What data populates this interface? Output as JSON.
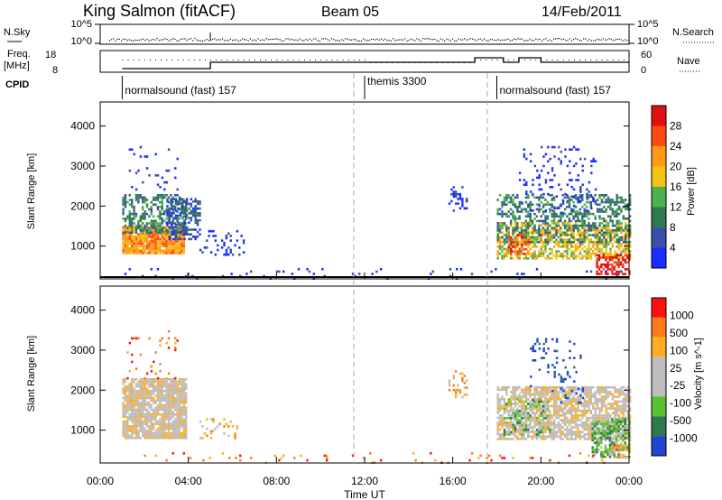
{
  "header": {
    "station": "King Salmon (fitACF)",
    "beam": "Beam 05",
    "date": "14/Feb/2011"
  },
  "noise_panel": {
    "left_label": "N.Sky",
    "right_label": "N.Search",
    "left_ticks": [
      "10^5",
      "10^0"
    ],
    "right_ticks": [
      "10^5",
      "10^0"
    ]
  },
  "freq_panel": {
    "left_label_line1": "Freq.",
    "left_label_line2": "[MHz]",
    "right_label": "Nave",
    "left_ticks": [
      "18",
      "8"
    ],
    "right_ticks": [
      "60",
      "0"
    ]
  },
  "cpid": {
    "label": "CPID",
    "segments": [
      {
        "start_hour": 1.0,
        "text": "normalsound (fast) 157"
      },
      {
        "start_hour": 12.0,
        "text": "themis 3300"
      },
      {
        "start_hour": 18.0,
        "text": "normalsound (fast) 157"
      }
    ]
  },
  "colors": {
    "power": [
      "#1a2cff",
      "#3a4fa8",
      "#2e7a4f",
      "#4caf50",
      "#f2c314",
      "#ff9a16",
      "#ff4a14",
      "#e01010"
    ],
    "velocity": [
      "#ff1010",
      "#ff7a18",
      "#ffae22",
      "#bdbdbd",
      "#bdbdbd",
      "#59c030",
      "#2e7a4f",
      "#2244d0"
    ]
  },
  "chart_data": {
    "type": "heatmap",
    "x_range_hours": [
      0,
      24
    ],
    "x_ticks": [
      "00:00",
      "04:00",
      "08:00",
      "12:00",
      "16:00",
      "20:00",
      "00:00"
    ],
    "xlabel": "Time UT",
    "grid": "vertical dashed at 12:00 and 18:00",
    "panels": [
      {
        "name": "power",
        "ylabel": "Slant Range [km]",
        "ylim": [
          180,
          4600
        ],
        "y_ticks": [
          "1000",
          "2000",
          "3000",
          "4000"
        ],
        "colorbar_label": "Power [dB]",
        "colorbar_ticks": [
          "4",
          "8",
          "12",
          "16",
          "20",
          "24",
          "28"
        ],
        "blobs": [
          {
            "t0": 1.0,
            "t1": 3.8,
            "r0": 800,
            "r1": 1500,
            "level": 5,
            "density": 0.95
          },
          {
            "t0": 1.0,
            "t1": 3.9,
            "r0": 1350,
            "r1": 2300,
            "level": 2,
            "density": 0.55
          },
          {
            "t0": 3.0,
            "t1": 4.5,
            "r0": 1200,
            "r1": 2200,
            "level": 1,
            "density": 0.6
          },
          {
            "t0": 1.3,
            "t1": 3.6,
            "r0": 2400,
            "r1": 3500,
            "level": 0,
            "density": 0.08
          },
          {
            "t0": 4.5,
            "t1": 6.5,
            "r0": 800,
            "r1": 1400,
            "level": 0,
            "density": 0.18
          },
          {
            "t0": 15.8,
            "t1": 16.6,
            "r0": 1900,
            "r1": 2500,
            "level": 0,
            "density": 0.35
          },
          {
            "t0": 18.0,
            "t1": 24.0,
            "r0": 700,
            "r1": 1600,
            "level": 4,
            "density": 0.6
          },
          {
            "t0": 18.0,
            "t1": 24.0,
            "r0": 1100,
            "r1": 2300,
            "level": 2,
            "density": 0.45
          },
          {
            "t0": 19.0,
            "t1": 22.5,
            "r0": 1800,
            "r1": 3500,
            "level": 0,
            "density": 0.12
          },
          {
            "t0": 22.5,
            "t1": 24.0,
            "r0": 300,
            "r1": 800,
            "level": 7,
            "density": 0.7
          },
          {
            "t0": 18.5,
            "t1": 19.5,
            "r0": 800,
            "r1": 1300,
            "level": 6,
            "density": 0.5
          },
          {
            "t0": 1.0,
            "t1": 24.0,
            "r0": 200,
            "r1": 450,
            "level": 0,
            "density": 0.05
          }
        ]
      },
      {
        "name": "velocity",
        "ylabel": "Slant Range [km]",
        "ylim": [
          180,
          4600
        ],
        "y_ticks": [
          "1000",
          "2000",
          "3000",
          "4000"
        ],
        "colorbar_label": "Velocity [m s^-1]",
        "colorbar_ticks": [
          "1000",
          "500",
          "100",
          "25",
          "-25",
          "-100",
          "-500",
          "-1000"
        ],
        "blobs": [
          {
            "t0": 1.0,
            "t1": 3.9,
            "r0": 800,
            "r1": 2300,
            "level": 3,
            "density": 0.9
          },
          {
            "t0": 1.2,
            "t1": 3.5,
            "r0": 2300,
            "r1": 3500,
            "level": 1,
            "density": 0.08
          },
          {
            "t0": 4.5,
            "t1": 6.2,
            "r0": 800,
            "r1": 1300,
            "level": 2,
            "density": 0.15
          },
          {
            "t0": 15.8,
            "t1": 16.6,
            "r0": 1800,
            "r1": 2500,
            "level": 2,
            "density": 0.2
          },
          {
            "t0": 18.0,
            "t1": 24.0,
            "r0": 800,
            "r1": 2100,
            "level": 3,
            "density": 0.75
          },
          {
            "t0": 18.3,
            "t1": 20.5,
            "r0": 900,
            "r1": 1800,
            "level": 5,
            "density": 0.35
          },
          {
            "t0": 19.5,
            "t1": 22.0,
            "r0": 1700,
            "r1": 3300,
            "level": 7,
            "density": 0.1
          },
          {
            "t0": 22.3,
            "t1": 24.0,
            "r0": 350,
            "r1": 1300,
            "level": 5,
            "density": 0.7
          },
          {
            "t0": 23.2,
            "t1": 24.0,
            "r0": 300,
            "r1": 700,
            "level": 2,
            "density": 0.5
          },
          {
            "t0": 1.0,
            "t1": 24.0,
            "r0": 200,
            "r1": 450,
            "level": 1,
            "density": 0.05
          }
        ]
      }
    ]
  }
}
